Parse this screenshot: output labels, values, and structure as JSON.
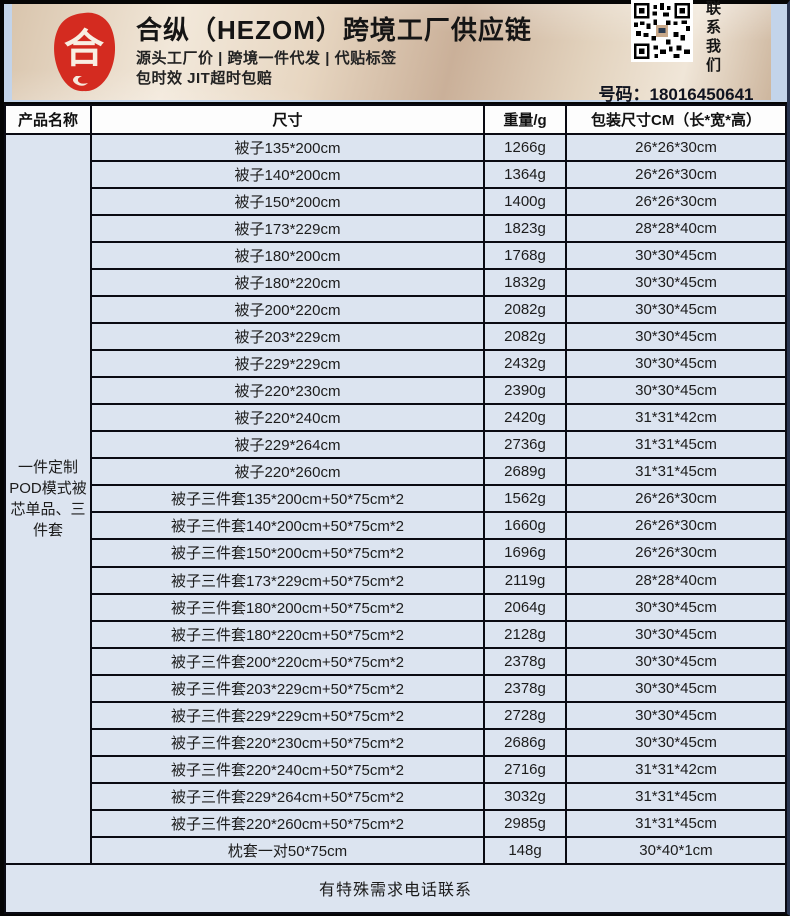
{
  "banner": {
    "logo_char": "合",
    "title": "合纵（HEZOM）跨境工厂供应链",
    "tagline1": "源头工厂价 | 跨境一件代发 | 代贴标签",
    "tagline2": "包时效 JIT超时包赔",
    "contact_vertical": "联系我们",
    "phone": "号码：18016450641"
  },
  "colors": {
    "row_blue": "#dce4f0",
    "banner_strip_blue": "#c3d4ea",
    "border_black": "#0a0a12",
    "banner_beige": "#e7d6c1",
    "seal_red": "#d42b20"
  },
  "table": {
    "headers": [
      "产品名称",
      "尺寸",
      "重量/g",
      "包装尺寸CM（长*宽*高）"
    ],
    "product_name": "一件定制POD模式被芯单品、三件套",
    "rows": [
      {
        "size": "被子135*200cm",
        "weight": "1266g",
        "package": "26*26*30cm"
      },
      {
        "size": "被子140*200cm",
        "weight": "1364g",
        "package": "26*26*30cm"
      },
      {
        "size": "被子150*200cm",
        "weight": "1400g",
        "package": "26*26*30cm"
      },
      {
        "size": "被子173*229cm",
        "weight": "1823g",
        "package": "28*28*40cm"
      },
      {
        "size": "被子180*200cm",
        "weight": "1768g",
        "package": "30*30*45cm"
      },
      {
        "size": "被子180*220cm",
        "weight": "1832g",
        "package": "30*30*45cm"
      },
      {
        "size": "被子200*220cm",
        "weight": "2082g",
        "package": "30*30*45cm"
      },
      {
        "size": "被子203*229cm",
        "weight": "2082g",
        "package": "30*30*45cm"
      },
      {
        "size": "被子229*229cm",
        "weight": "2432g",
        "package": "30*30*45cm"
      },
      {
        "size": "被子220*230cm",
        "weight": "2390g",
        "package": "30*30*45cm"
      },
      {
        "size": "被子220*240cm",
        "weight": "2420g",
        "package": "31*31*42cm"
      },
      {
        "size": "被子229*264cm",
        "weight": "2736g",
        "package": "31*31*45cm"
      },
      {
        "size": "被子220*260cm",
        "weight": "2689g",
        "package": "31*31*45cm"
      },
      {
        "size": "被子三件套135*200cm+50*75cm*2",
        "weight": "1562g",
        "package": "26*26*30cm"
      },
      {
        "size": "被子三件套140*200cm+50*75cm*2",
        "weight": "1660g",
        "package": "26*26*30cm"
      },
      {
        "size": "被子三件套150*200cm+50*75cm*2",
        "weight": "1696g",
        "package": "26*26*30cm"
      },
      {
        "size": "被子三件套173*229cm+50*75cm*2",
        "weight": "2119g",
        "package": "28*28*40cm"
      },
      {
        "size": "被子三件套180*200cm+50*75cm*2",
        "weight": "2064g",
        "package": "30*30*45cm"
      },
      {
        "size": "被子三件套180*220cm+50*75cm*2",
        "weight": "2128g",
        "package": "30*30*45cm"
      },
      {
        "size": "被子三件套200*220cm+50*75cm*2",
        "weight": "2378g",
        "package": "30*30*45cm"
      },
      {
        "size": "被子三件套203*229cm+50*75cm*2",
        "weight": "2378g",
        "package": "30*30*45cm"
      },
      {
        "size": "被子三件套229*229cm+50*75cm*2",
        "weight": "2728g",
        "package": "30*30*45cm"
      },
      {
        "size": "被子三件套220*230cm+50*75cm*2",
        "weight": "2686g",
        "package": "30*30*45cm"
      },
      {
        "size": "被子三件套220*240cm+50*75cm*2",
        "weight": "2716g",
        "package": "31*31*42cm"
      },
      {
        "size": "被子三件套229*264cm+50*75cm*2",
        "weight": "3032g",
        "package": "31*31*45cm"
      },
      {
        "size": "被子三件套220*260cm+50*75cm*2",
        "weight": "2985g",
        "package": "31*31*45cm"
      },
      {
        "size": "枕套一对50*75cm",
        "weight": "148g",
        "package": "30*40*1cm"
      }
    ],
    "footer_note": "有特殊需求电话联系"
  }
}
